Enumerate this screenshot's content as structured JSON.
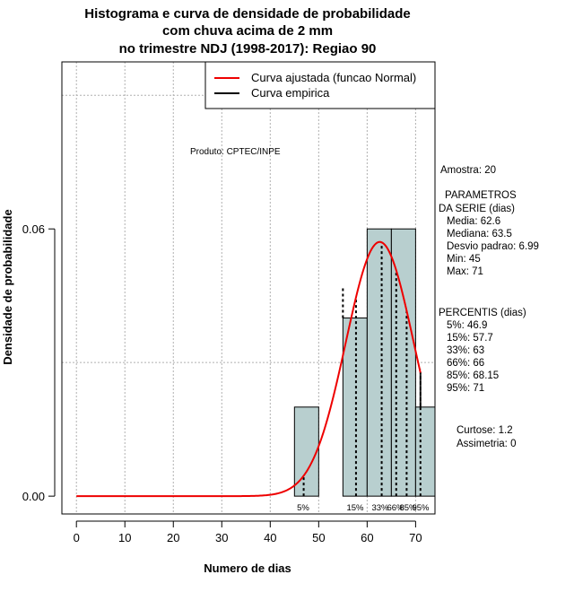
{
  "chart_data": {
    "type": "bar",
    "title": [
      "Histograma e curva de densidade de probabilidade",
      "com chuva acima de 2 mm",
      "no trimestre NDJ (1998-2017): Regiao 90"
    ],
    "xlabel": "Numero de dias",
    "ylabel": "Densidade de probabilidade",
    "xlim": [
      -3,
      74
    ],
    "ylim": [
      -0.004,
      0.0975
    ],
    "x_ticks": [
      0,
      10,
      20,
      30,
      40,
      50,
      60,
      70
    ],
    "y_ticks": [
      0.0,
      0.06
    ],
    "y_tick_labels": [
      "0.00",
      "0.06"
    ],
    "grid": true,
    "histogram": [
      {
        "from": 45,
        "to": 50,
        "density": 0.02
      },
      {
        "from": 50,
        "to": 55,
        "density": 0.0
      },
      {
        "from": 55,
        "to": 60,
        "density": 0.04
      },
      {
        "from": 60,
        "to": 65,
        "density": 0.06
      },
      {
        "from": 65,
        "to": 70,
        "density": 0.06
      },
      {
        "from": 70,
        "to": 75,
        "density": 0.02
      }
    ],
    "normal_fit": {
      "mean": 62.6,
      "sd": 6.99,
      "from": 0,
      "to": 71
    },
    "percentiles": [
      {
        "label": "5%",
        "value": 46.9
      },
      {
        "label": "15%",
        "value": 57.7
      },
      {
        "label": "33%",
        "value": 63
      },
      {
        "label": "66%",
        "value": 66
      },
      {
        "label": "85%",
        "value": 68.15
      },
      {
        "label": "95%",
        "value": 71
      }
    ],
    "legend": {
      "position": "top-right",
      "entries": [
        {
          "label": "Curva ajustada (funcao Normal)",
          "color": "#ee0000"
        },
        {
          "label": "Curva empirica",
          "color": "#000000"
        }
      ]
    },
    "colors": {
      "bar_fill": "#b8cfcf",
      "curve": "#ee0000",
      "grid": "#b0b0b0"
    }
  },
  "annotations": {
    "product": "Produto: CPTEC/INPE",
    "sample": "Amostra: 20",
    "params_title": [
      "PARAMETROS",
      "DA SERIE (dias)"
    ],
    "params": [
      "Media: 62.6",
      "Mediana: 63.5",
      "Desvio padrao: 6.99",
      "Min: 45",
      "Max: 71"
    ],
    "percentis_title": "PERCENTIS (dias)",
    "percentis": [
      "5%: 46.9",
      "15%: 57.7",
      "33%: 63",
      "66%: 66",
      "85%: 68.15",
      "95%: 71"
    ],
    "shape": [
      "Curtose: 1.2",
      "Assimetria: 0"
    ]
  }
}
